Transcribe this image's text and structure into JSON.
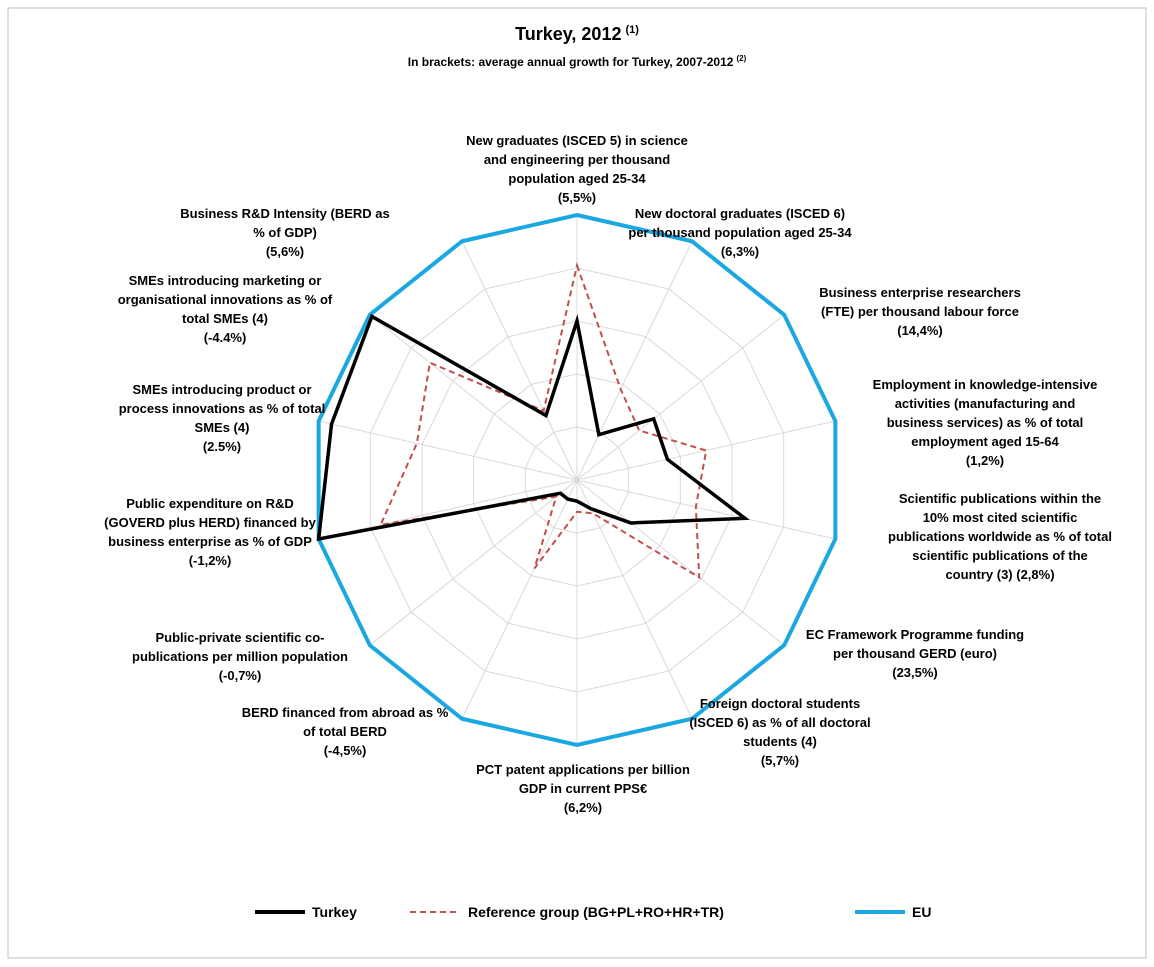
{
  "chart_data": {
    "type": "radar",
    "title": "Turkey, 2012",
    "title_sup": "(1)",
    "subtitle": "In brackets: average annual growth for Turkey, 2007-2012",
    "subtitle_sup": "(2)",
    "categories": [
      "New graduates (ISCED 5) in science\nand engineering per thousand\npopulation aged 25-34\n(5,5%)",
      "New doctoral graduates (ISCED 6)\nper thousand population aged 25-34\n(6,3%)",
      "Business enterprise researchers\n(FTE) per thousand labour force\n(14,4%)",
      "Employment in knowledge-intensive\nactivities (manufacturing and\nbusiness services) as % of total\nemployment aged 15-64\n(1,2%)",
      "Scientific publications within the\n10% most cited scientific\npublications worldwide as % of total\nscientific publications of the\ncountry (3) (2,8%)",
      "EC Framework Programme funding\nper thousand GERD (euro)\n(23,5%)",
      "Foreign doctoral students\n(ISCED 6) as % of all doctoral\nstudents (4)\n(5,7%)",
      "PCT patent applications per billion\nGDP in current PPS€\n(6,2%)",
      "BERD financed from abroad as %\nof total BERD\n(-4,5%)",
      "Public-private scientific co-\npublications per million population\n(-0,7%)",
      "Public expenditure on R&D\n(GOVERD plus HERD) financed by\nbusiness enterprise as % of GDP\n(-1,2%)",
      "SMEs introducing product or\nprocess innovations as % of total\nSMEs (4)\n(2.5%)",
      "SMEs introducing marketing or\norganisational innovations as % of\ntotal SMEs (4)\n(-4.4%)",
      "Business R&D Intensity (BERD as\n% of GDP)\n(5,6%)"
    ],
    "series": [
      {
        "name": "Turkey",
        "color": "#000000",
        "style": "solid",
        "values": [
          0.6,
          0.19,
          0.37,
          0.35,
          0.65,
          0.26,
          0.12,
          0.08,
          0.08,
          0.08,
          1.0,
          0.95,
          0.99,
          0.27
        ]
      },
      {
        "name": "Reference group (BG+PL+RO+HR+TR)",
        "color": "#c0504d",
        "style": "dashed",
        "values": [
          0.81,
          0.38,
          0.3,
          0.5,
          0.46,
          0.59,
          0.14,
          0.12,
          0.37,
          0.1,
          0.76,
          0.62,
          0.71,
          0.29
        ]
      },
      {
        "name": "EU",
        "color": "#1ba7e0",
        "style": "solid",
        "values": [
          1,
          1,
          1,
          1,
          1,
          1,
          1,
          1,
          1,
          1,
          1,
          1,
          1,
          1
        ]
      }
    ],
    "rlim": [
      0,
      1
    ],
    "rticks": [
      0.2,
      0.4,
      0.6,
      0.8,
      1
    ],
    "grid": true,
    "legend": "bottom"
  }
}
